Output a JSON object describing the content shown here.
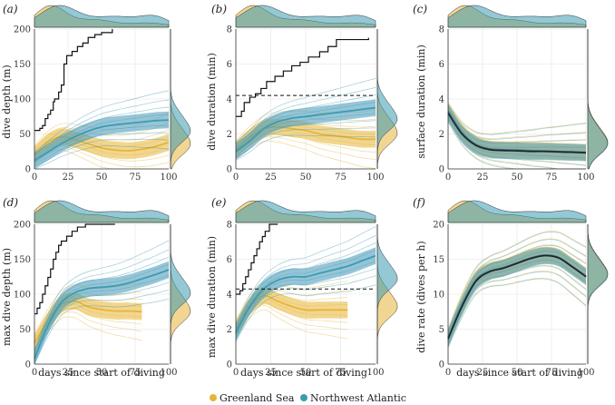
{
  "legend": {
    "items": [
      {
        "label": "Greenland Sea",
        "color": "#E5B53A"
      },
      {
        "label": "Northwest Atlantic",
        "color": "#3D9AB3"
      }
    ]
  },
  "colors": {
    "gs": "#E5B53A",
    "nwa": "#3D9AB3",
    "gs_band": "#E9BB45",
    "nwa_band": "#4E9FBC",
    "black": "#111111"
  },
  "chart_data": [
    {
      "type": "line",
      "panel_label": "(a)",
      "ylabel": "dive depth (m)",
      "xlabel": "",
      "xlim": [
        0,
        100
      ],
      "ylim": [
        0,
        200
      ],
      "xticks": [
        0,
        25,
        50,
        75,
        100
      ],
      "yticks": [
        0,
        50,
        100,
        150,
        200
      ],
      "x": [
        0,
        10,
        20,
        30,
        40,
        50,
        60,
        70,
        80,
        90,
        100
      ],
      "series": [
        {
          "name": "Greenland Sea",
          "values": [
            20,
            38,
            46,
            42,
            36,
            30,
            27,
            26,
            28,
            32,
            38
          ]
        },
        {
          "name": "Northwest Atlantic",
          "values": [
            12,
            24,
            36,
            46,
            54,
            60,
            63,
            65,
            67,
            69,
            70
          ]
        }
      ],
      "step": [
        [
          0,
          55
        ],
        [
          4,
          58
        ],
        [
          6,
          62
        ],
        [
          8,
          72
        ],
        [
          10,
          78
        ],
        [
          12,
          84
        ],
        [
          14,
          96
        ],
        [
          15,
          100
        ],
        [
          18,
          110
        ],
        [
          20,
          120
        ],
        [
          22,
          150
        ],
        [
          24,
          162
        ],
        [
          28,
          168
        ],
        [
          32,
          175
        ],
        [
          36,
          180
        ],
        [
          40,
          188
        ],
        [
          45,
          192
        ],
        [
          50,
          195
        ],
        [
          58,
          200
        ]
      ],
      "dashed": null
    },
    {
      "type": "line",
      "panel_label": "(b)",
      "ylabel": "dive duration (min)",
      "xlabel": "",
      "xlim": [
        0,
        100
      ],
      "ylim": [
        0,
        8
      ],
      "xticks": [
        0,
        25,
        50,
        75,
        100
      ],
      "yticks": [
        0,
        2,
        4,
        6,
        8
      ],
      "x": [
        0,
        10,
        20,
        30,
        40,
        50,
        60,
        70,
        80,
        90,
        100
      ],
      "series": [
        {
          "name": "Greenland Sea",
          "values": [
            1.1,
            1.8,
            2.3,
            2.4,
            2.3,
            2.2,
            2.0,
            1.9,
            1.8,
            1.7,
            1.7
          ]
        },
        {
          "name": "Northwest Atlantic",
          "values": [
            1.0,
            1.6,
            2.3,
            2.7,
            2.9,
            3.0,
            3.1,
            3.2,
            3.3,
            3.4,
            3.5
          ]
        }
      ],
      "step": [
        [
          0,
          3.0
        ],
        [
          4,
          3.3
        ],
        [
          6,
          3.8
        ],
        [
          10,
          4.1
        ],
        [
          14,
          4.3
        ],
        [
          18,
          4.6
        ],
        [
          22,
          5.0
        ],
        [
          28,
          5.3
        ],
        [
          34,
          5.6
        ],
        [
          40,
          5.9
        ],
        [
          46,
          6.1
        ],
        [
          52,
          6.4
        ],
        [
          60,
          6.7
        ],
        [
          66,
          7.0
        ],
        [
          72,
          7.4
        ],
        [
          95,
          7.5
        ]
      ],
      "dashed": 4.2
    },
    {
      "type": "line",
      "panel_label": "(c)",
      "ylabel": "surface duration (min)",
      "xlabel": "",
      "xlim": [
        0,
        100
      ],
      "ylim": [
        0,
        8
      ],
      "xticks": [
        0,
        25,
        50,
        75,
        100
      ],
      "yticks": [
        0,
        2,
        4,
        6,
        8
      ],
      "x": [
        0,
        10,
        20,
        30,
        40,
        50,
        60,
        70,
        80,
        90,
        100
      ],
      "series": [
        {
          "name": "Greenland Sea",
          "values": [
            3.3,
            2.1,
            1.4,
            1.15,
            1.1,
            1.08,
            1.05,
            1.03,
            1.0,
            0.98,
            0.95
          ]
        },
        {
          "name": "Northwest Atlantic",
          "values": [
            3.2,
            2.0,
            1.35,
            1.1,
            1.05,
            1.03,
            1.0,
            1.0,
            0.97,
            0.95,
            0.92
          ]
        }
      ],
      "step": null,
      "dashed": null
    },
    {
      "type": "line",
      "panel_label": "(d)",
      "ylabel": "max dive depth (m)",
      "xlabel": "days since start of diving",
      "xlim": [
        0,
        100
      ],
      "ylim": [
        0,
        200
      ],
      "xticks": [
        0,
        25,
        50,
        75,
        100
      ],
      "yticks": [
        0,
        50,
        100,
        150,
        200
      ],
      "x": [
        0,
        10,
        20,
        30,
        40,
        50,
        60,
        70,
        80,
        90,
        100
      ],
      "series": [
        {
          "name": "Greenland Sea",
          "values": [
            30,
            62,
            85,
            90,
            82,
            78,
            76,
            76,
            75,
            null,
            null
          ]
        },
        {
          "name": "Northwest Atlantic",
          "values": [
            8,
            55,
            88,
            102,
            108,
            110,
            112,
            116,
            122,
            128,
            135
          ]
        }
      ],
      "step": [
        [
          0,
          72
        ],
        [
          2,
          80
        ],
        [
          4,
          88
        ],
        [
          6,
          100
        ],
        [
          8,
          112
        ],
        [
          10,
          124
        ],
        [
          12,
          136
        ],
        [
          14,
          150
        ],
        [
          16,
          160
        ],
        [
          18,
          170
        ],
        [
          20,
          176
        ],
        [
          24,
          183
        ],
        [
          28,
          190
        ],
        [
          32,
          196
        ],
        [
          38,
          200
        ],
        [
          60,
          200
        ]
      ],
      "dashed": null
    },
    {
      "type": "line",
      "panel_label": "(e)",
      "ylabel": "max dive duration (min)",
      "xlabel": "days since start of diving",
      "xlim": [
        0,
        100
      ],
      "ylim": [
        0,
        8
      ],
      "xticks": [
        0,
        25,
        50,
        75,
        100
      ],
      "yticks": [
        0,
        2,
        4,
        6,
        8
      ],
      "x": [
        0,
        10,
        20,
        30,
        40,
        50,
        60,
        70,
        80,
        90,
        100
      ],
      "series": [
        {
          "name": "Greenland Sea",
          "values": [
            2.0,
            3.3,
            3.9,
            3.6,
            3.3,
            3.1,
            3.1,
            3.1,
            3.1,
            null,
            null
          ]
        },
        {
          "name": "Northwest Atlantic",
          "values": [
            1.8,
            3.3,
            4.3,
            4.8,
            5.0,
            5.0,
            5.2,
            5.4,
            5.6,
            5.9,
            6.2
          ]
        }
      ],
      "step": [
        [
          0,
          4.0
        ],
        [
          3,
          4.2
        ],
        [
          5,
          4.6
        ],
        [
          7,
          5.0
        ],
        [
          9,
          5.4
        ],
        [
          11,
          5.8
        ],
        [
          13,
          6.2
        ],
        [
          15,
          6.6
        ],
        [
          17,
          7.0
        ],
        [
          19,
          7.3
        ],
        [
          21,
          7.6
        ],
        [
          24,
          8.0
        ],
        [
          30,
          8.0
        ]
      ],
      "dashed": 4.3
    },
    {
      "type": "line",
      "panel_label": "(f)",
      "ylabel": "dive rate (dives per h)",
      "xlabel": "days since start of diving",
      "xlim": [
        0,
        100
      ],
      "ylim": [
        0,
        20
      ],
      "xticks": [
        0,
        25,
        50,
        75,
        100
      ],
      "yticks": [
        0,
        5,
        10,
        15,
        20
      ],
      "x": [
        0,
        10,
        20,
        30,
        40,
        50,
        60,
        70,
        80,
        90,
        100
      ],
      "series": [
        {
          "name": "Greenland Sea",
          "values": [
            3.8,
            8.5,
            12.0,
            13.3,
            13.8,
            14.5,
            15.2,
            15.6,
            15.3,
            14.0,
            12.6
          ]
        },
        {
          "name": "Northwest Atlantic",
          "values": [
            3.6,
            8.2,
            11.8,
            13.2,
            13.7,
            14.4,
            15.1,
            15.5,
            15.2,
            13.9,
            12.5
          ]
        }
      ],
      "step": null,
      "dashed": null
    }
  ]
}
